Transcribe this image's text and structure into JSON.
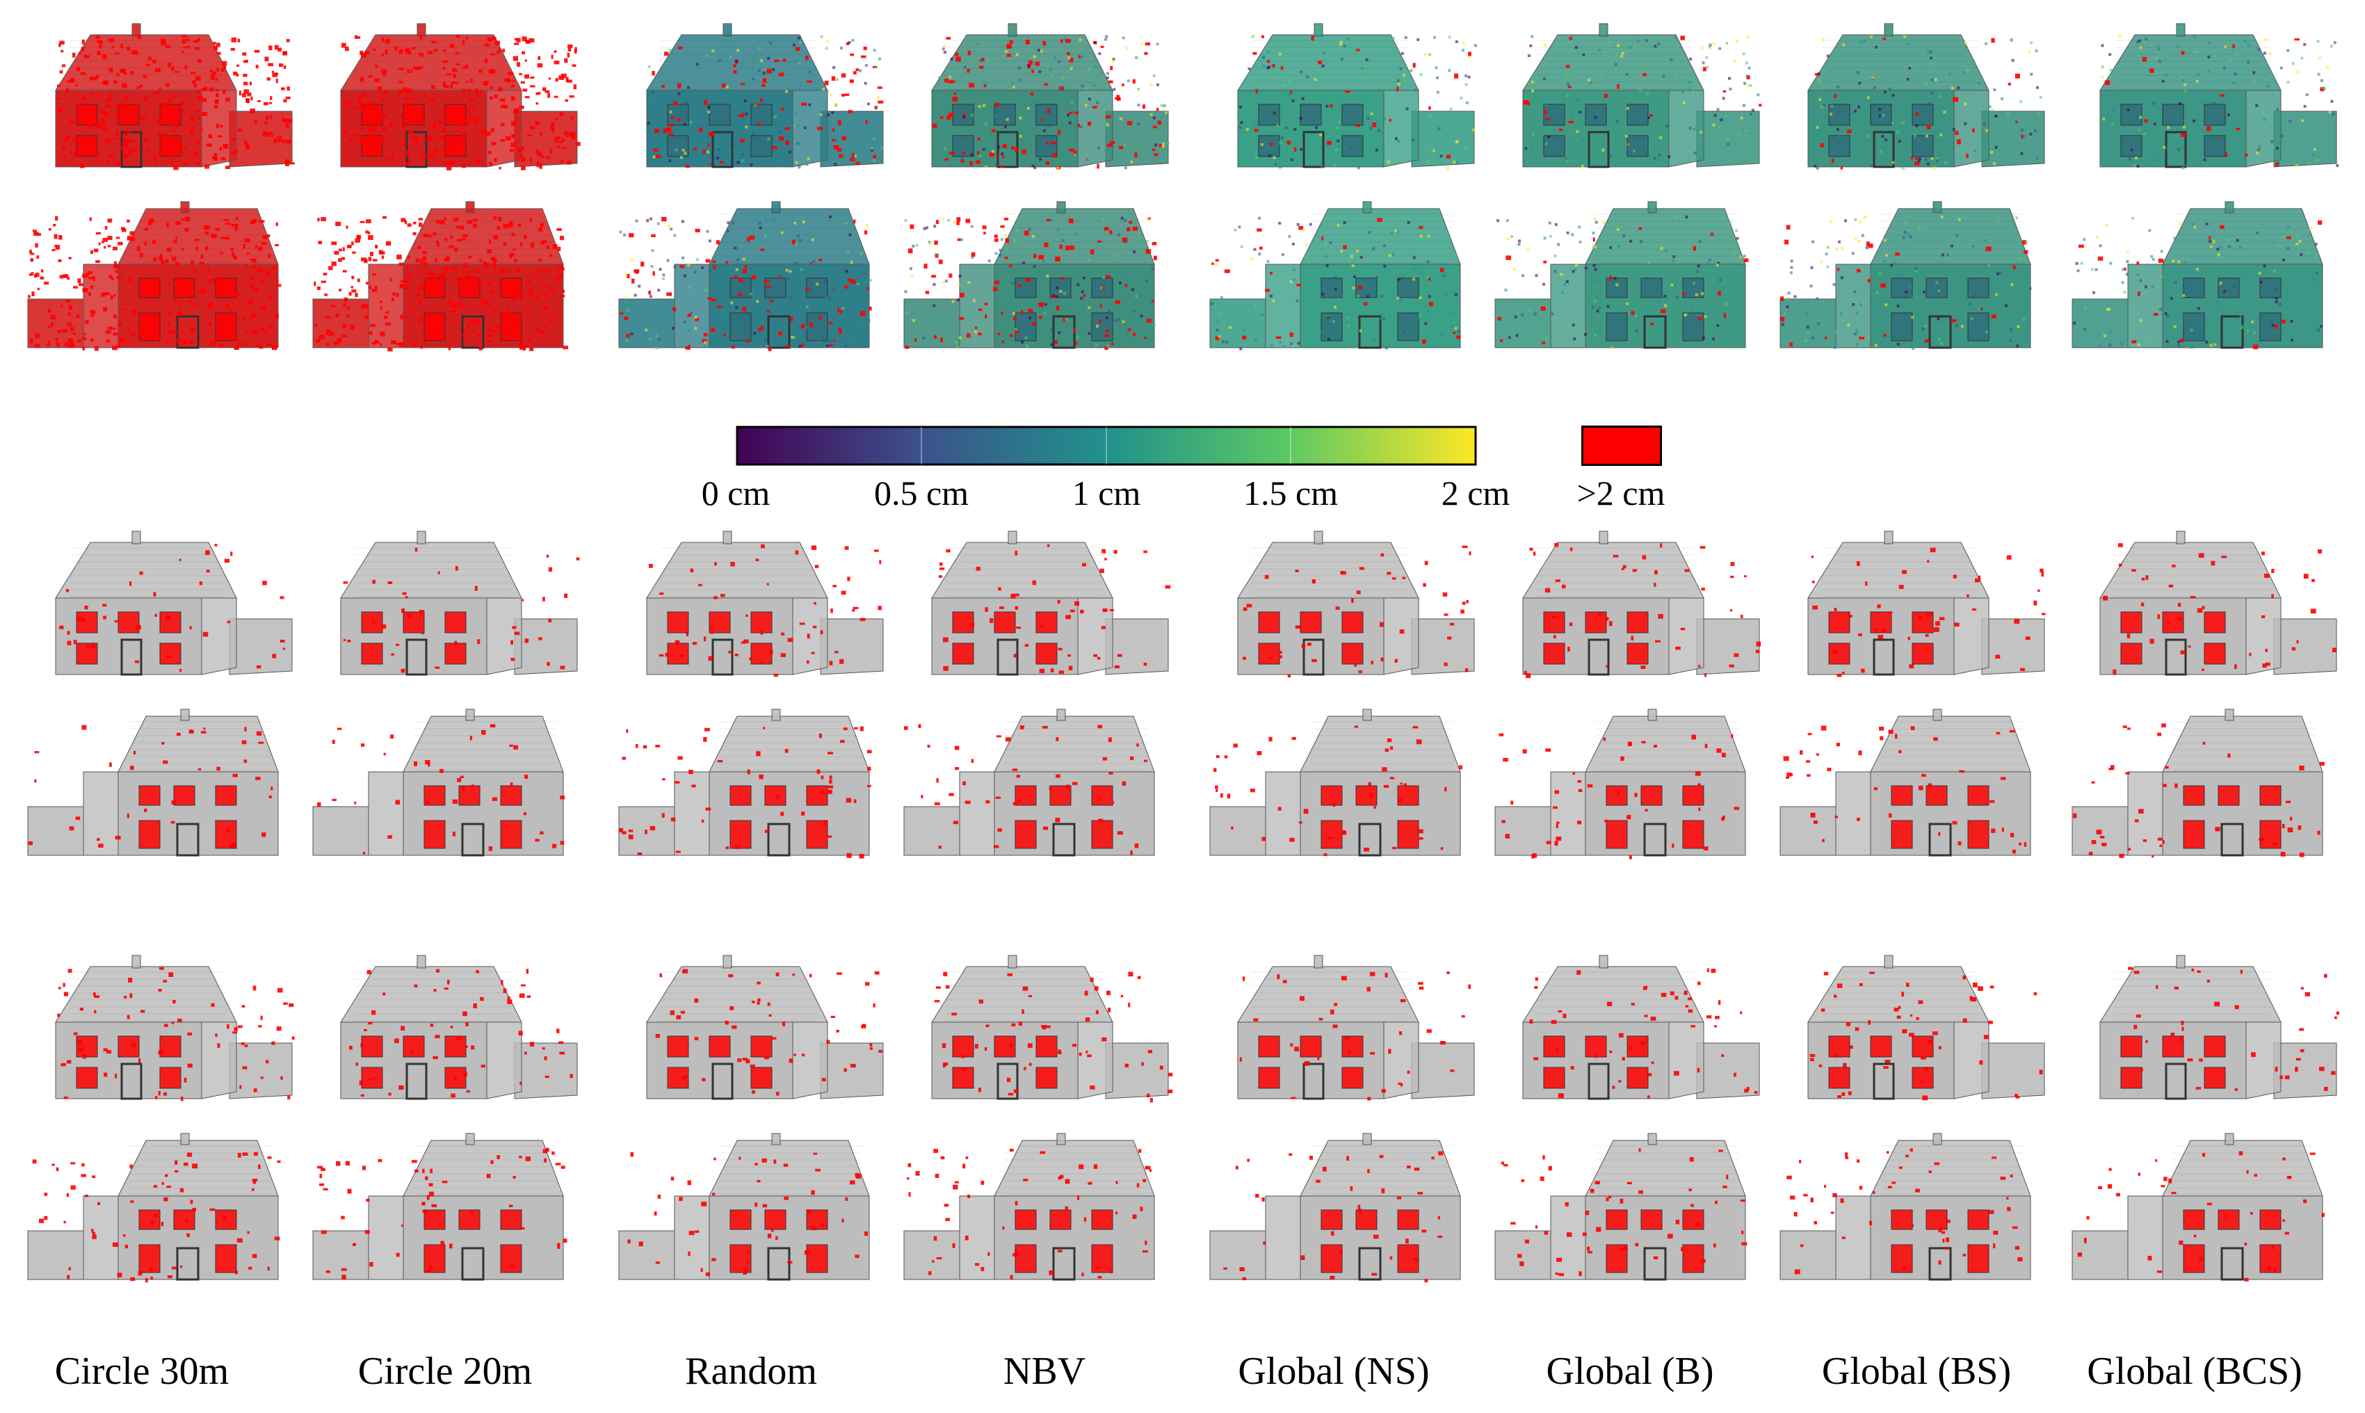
{
  "columns": [
    {
      "label": "Circle 30m"
    },
    {
      "label": "Circle 20m"
    },
    {
      "label": "Random"
    },
    {
      "label": "NBV"
    },
    {
      "label": "Global (NS)"
    },
    {
      "label": "Global (B)"
    },
    {
      "label": "Global (BS)"
    },
    {
      "label": "Global (BCS)"
    }
  ],
  "colorbar": {
    "ticks": [
      "0 cm",
      "0.5 cm",
      "1 cm",
      "1.5 cm",
      "2 cm"
    ],
    "range_cm": [
      0,
      2
    ],
    "overflow_label": ">2 cm",
    "overflow_color": "#ff0000",
    "gradient": [
      "#440154",
      "#3b528b",
      "#21918c",
      "#5ec962",
      "#fde725"
    ]
  },
  "styles": {
    "error_red": "#ff0000",
    "surface_gray": "#bdbdbd"
  },
  "panels": {
    "top": {
      "description_colors": [
        "#d62020",
        "#d41e1e",
        "#2e7f8a",
        "#3f8f7e",
        "#3aa087",
        "#3f9a84",
        "#3c9583",
        "#3d9786"
      ],
      "red_fraction": [
        0.9,
        0.95,
        0.25,
        0.3,
        0.08,
        0.06,
        0.07,
        0.05
      ]
    },
    "middle": {
      "red_fraction": [
        0.12,
        0.12,
        0.18,
        0.15,
        0.14,
        0.14,
        0.14,
        0.13
      ]
    },
    "bottom": {
      "red_fraction": [
        0.22,
        0.18,
        0.16,
        0.18,
        0.12,
        0.16,
        0.16,
        0.12
      ]
    }
  }
}
